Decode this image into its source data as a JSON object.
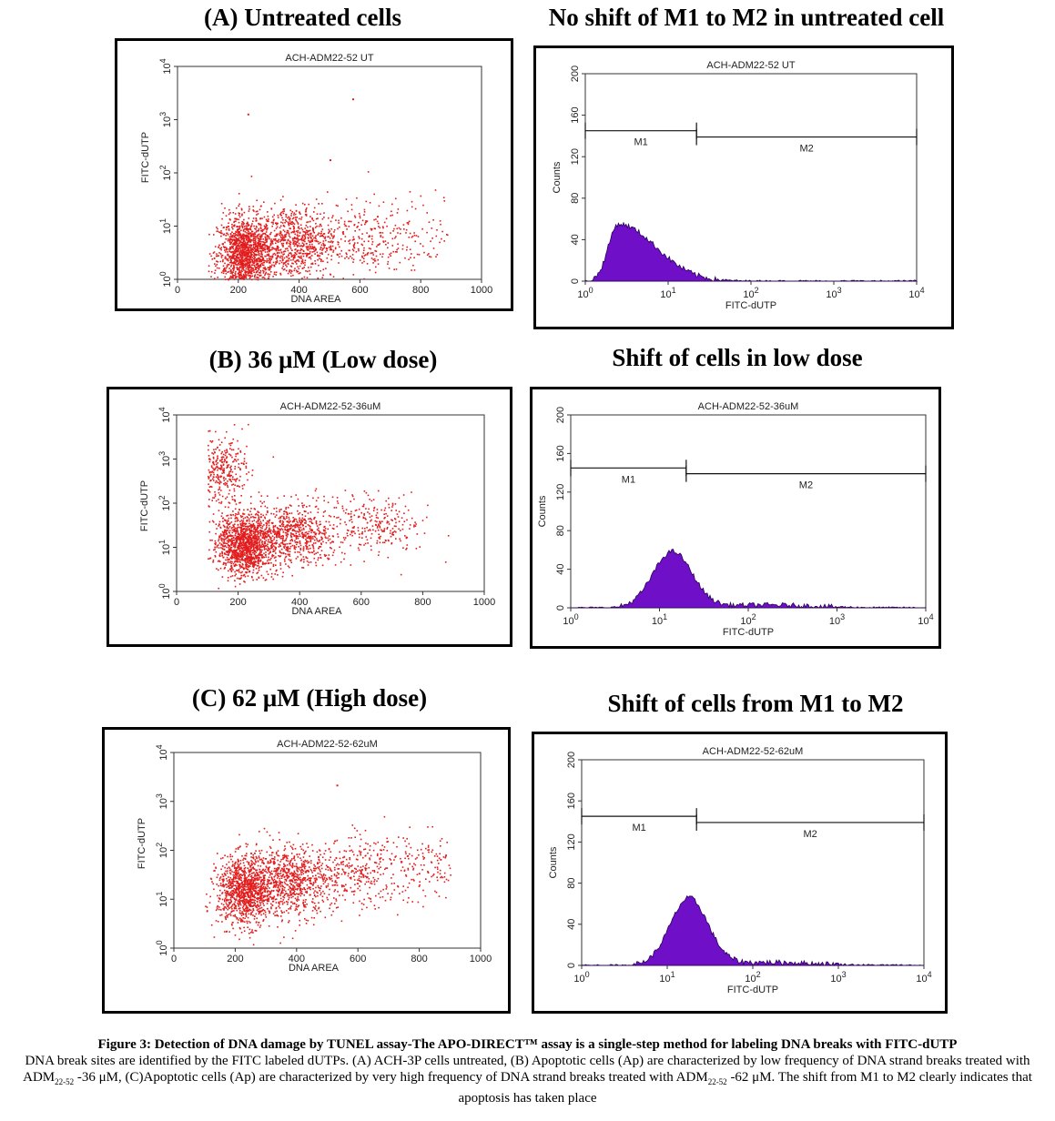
{
  "headings": {
    "a_scatter": "(A) Untreated cells",
    "a_hist": "No shift of M1 to M2 in untreated cell",
    "b_scatter": "(B) 36 μM (Low dose)",
    "b_hist": "Shift of cells in low dose",
    "c_scatter": "(C) 62 μM (High dose)",
    "c_hist": "Shift of cells from M1 to M2"
  },
  "colors": {
    "dots": "#e21d1d",
    "histogram_fill": "#6f10c8",
    "histogram_edge": "#2a0055",
    "axis": "#333333"
  },
  "chart_data": [
    {
      "id": "scatter_a",
      "type": "scatter",
      "title": "ACH-ADM22-52 UT",
      "xlabel": "DNA AREA",
      "ylabel": "FITC-dUTP",
      "xlim": [
        0,
        1000
      ],
      "ylim_log10": [
        0,
        4
      ],
      "yscale": "log",
      "xticks": [
        0,
        200,
        400,
        600,
        800,
        1000
      ],
      "yticks": [
        "10^0",
        "10^1",
        "10^2",
        "10^3",
        "10^4"
      ],
      "density_regions": [
        {
          "x": 220,
          "y": 3,
          "count": 1400
        },
        {
          "x": 380,
          "y": 5,
          "count": 800
        },
        {
          "x": 600,
          "y": 6,
          "count": 220
        },
        {
          "x": 800,
          "y": 8,
          "count": 90
        }
      ],
      "outliers": [
        [
          230,
          1300
        ],
        [
          575,
          2500
        ],
        [
          500,
          180
        ]
      ]
    },
    {
      "id": "hist_a",
      "type": "area",
      "title": "ACH-ADM22-52 UT",
      "xlabel": "FITC-dUTP",
      "ylabel": "Counts",
      "xscale": "log",
      "xlim_log10": [
        0,
        4
      ],
      "ylim": [
        0,
        200
      ],
      "xticks": [
        "10^0",
        "10^1",
        "10^2",
        "10^3",
        "10^4"
      ],
      "yticks": [
        0,
        40,
        80,
        120,
        160,
        200
      ],
      "peak_x": 2.5,
      "peak_count": 55,
      "markers": [
        {
          "name": "M1",
          "start": 1,
          "end": 22,
          "level": 145
        },
        {
          "name": "M2",
          "start": 22,
          "end": 10000,
          "level": 139
        }
      ]
    },
    {
      "id": "scatter_b",
      "type": "scatter",
      "title": "ACH-ADM22-52-36uM",
      "xlabel": "DNA AREA",
      "ylabel": "FITC-dUTP",
      "xlim": [
        0,
        1000
      ],
      "ylim_log10": [
        0,
        4
      ],
      "yscale": "log",
      "xticks": [
        0,
        200,
        400,
        600,
        800,
        1000
      ],
      "yticks": [
        "10^0",
        "10^1",
        "10^2",
        "10^3",
        "10^4"
      ],
      "density_regions": [
        {
          "x": 220,
          "y": 12,
          "count": 1300
        },
        {
          "x": 380,
          "y": 20,
          "count": 700
        },
        {
          "x": 140,
          "y": 600,
          "count": 350
        },
        {
          "x": 650,
          "y": 30,
          "count": 250
        }
      ],
      "outliers": []
    },
    {
      "id": "hist_b",
      "type": "area",
      "title": "ACH-ADM22-52-36uM",
      "xlabel": "FITC-dUTP",
      "ylabel": "Counts",
      "xscale": "log",
      "xlim_log10": [
        0,
        4
      ],
      "ylim": [
        0,
        200
      ],
      "xticks": [
        "10^0",
        "10^1",
        "10^2",
        "10^3",
        "10^4"
      ],
      "yticks": [
        0,
        40,
        80,
        120,
        160,
        200
      ],
      "peak_x": 14,
      "peak_count": 58,
      "markers": [
        {
          "name": "M1",
          "start": 1,
          "end": 20,
          "level": 145
        },
        {
          "name": "M2",
          "start": 20,
          "end": 10000,
          "level": 139
        }
      ]
    },
    {
      "id": "scatter_c",
      "type": "scatter",
      "title": "ACH-ADM22-52-62uM",
      "xlabel": "DNA AREA",
      "ylabel": "FITC-dUTP",
      "xlim": [
        0,
        1000
      ],
      "ylim_log10": [
        0,
        4
      ],
      "yscale": "log",
      "xticks": [
        0,
        200,
        400,
        600,
        800,
        1000
      ],
      "yticks": [
        "10^0",
        "10^1",
        "10^2",
        "10^3",
        "10^4"
      ],
      "density_regions": [
        {
          "x": 230,
          "y": 15,
          "count": 1100
        },
        {
          "x": 380,
          "y": 25,
          "count": 800
        },
        {
          "x": 600,
          "y": 35,
          "count": 300
        },
        {
          "x": 820,
          "y": 45,
          "count": 150
        }
      ],
      "outliers": [
        [
          530,
          2200
        ]
      ]
    },
    {
      "id": "hist_c",
      "type": "area",
      "title": "ACH-ADM22-52-62uM",
      "xlabel": "FITC-dUTP",
      "ylabel": "Counts",
      "xscale": "log",
      "xlim_log10": [
        0,
        4
      ],
      "ylim": [
        0,
        200
      ],
      "xticks": [
        "10^0",
        "10^1",
        "10^2",
        "10^3",
        "10^4"
      ],
      "yticks": [
        0,
        40,
        80,
        120,
        160,
        200
      ],
      "peak_x": 18,
      "peak_count": 65,
      "markers": [
        {
          "name": "M1",
          "start": 1,
          "end": 22,
          "level": 145
        },
        {
          "name": "M2",
          "start": 22,
          "end": 10000,
          "level": 139
        }
      ]
    }
  ],
  "caption": {
    "title": "Figure 3: Detection of DNA damage by TUNEL assay-The APO-DIRECT™ assay is a single-step method for labeling DNA breaks with FITC-dUTP",
    "body_1": "DNA break sites are identified by the FITC labeled dUTPs. (A) ACH-3P cells untreated, (B) Apoptotic cells (Ap) are characterized by low frequency of DNA strand breaks treated with ADM",
    "sub_1": "22-52",
    "body_2": " -36 μM, (C)Apoptotic cells (Ap) are characterized by very high frequency of DNA strand breaks treated with ADM",
    "sub_2": "22-52",
    "body_3": " -62 μM. The shift from M1 to M2 clearly indicates that apoptosis has taken place"
  }
}
